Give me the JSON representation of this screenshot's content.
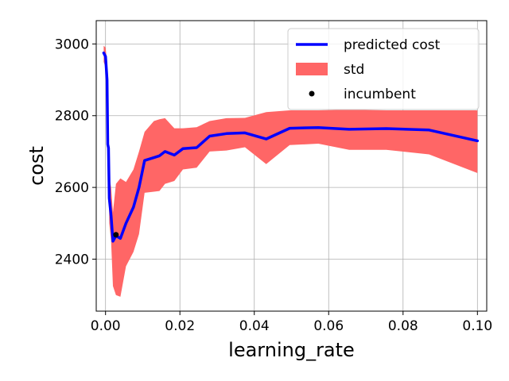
{
  "chart_data": {
    "type": "line",
    "title": "",
    "xlabel": "learning_rate",
    "ylabel": "cost",
    "xlim": [
      -0.0025,
      0.1025
    ],
    "ylim": [
      2255,
      3065
    ],
    "xticks": [
      0.0,
      0.02,
      0.04,
      0.06,
      0.08,
      0.1
    ],
    "xtick_labels": [
      "0.00",
      "0.02",
      "0.04",
      "0.06",
      "0.08",
      "0.10"
    ],
    "yticks": [
      2400,
      2600,
      2800,
      3000
    ],
    "ytick_labels": [
      "2400",
      "2600",
      "2800",
      "3000"
    ],
    "grid": true,
    "legend_position": "top-right",
    "colors": {
      "line": "#0000ff",
      "band": "#ff6666",
      "point": "#000000",
      "grid": "#b0b0b0"
    },
    "legend": [
      {
        "label": "predicted cost",
        "kind": "line"
      },
      {
        "label": "std",
        "kind": "band"
      },
      {
        "label": "incumbent",
        "kind": "point"
      }
    ],
    "series": [
      {
        "name": "predicted cost",
        "kind": "line",
        "x": [
          -0.0005,
          0.0,
          0.0004,
          0.0006,
          0.0008,
          0.001,
          0.0015,
          0.002,
          0.0028,
          0.004,
          0.0055,
          0.0075,
          0.009,
          0.0105,
          0.013,
          0.0145,
          0.016,
          0.0185,
          0.0208,
          0.0245,
          0.028,
          0.0325,
          0.0375,
          0.0432,
          0.0495,
          0.0572,
          0.0655,
          0.0755,
          0.087,
          0.1
        ],
        "y": [
          2975,
          2965,
          2900,
          2720,
          2710,
          2570,
          2520,
          2450,
          2465,
          2458,
          2500,
          2545,
          2600,
          2675,
          2683,
          2688,
          2700,
          2690,
          2708,
          2711,
          2743,
          2750,
          2752,
          2735,
          2765,
          2767,
          2762,
          2764,
          2760,
          2730
        ]
      },
      {
        "name": "std",
        "kind": "band",
        "x": [
          -0.0005,
          0.0,
          0.0004,
          0.0006,
          0.0008,
          0.001,
          0.0015,
          0.002,
          0.0028,
          0.004,
          0.0055,
          0.0075,
          0.009,
          0.0105,
          0.013,
          0.0145,
          0.016,
          0.0185,
          0.0208,
          0.0245,
          0.028,
          0.0325,
          0.0375,
          0.0432,
          0.0495,
          0.0572,
          0.0655,
          0.0755,
          0.087,
          0.1
        ],
        "upper": [
          2995,
          2990,
          2950,
          2765,
          2720,
          2630,
          2600,
          2530,
          2610,
          2625,
          2615,
          2650,
          2700,
          2755,
          2785,
          2790,
          2793,
          2765,
          2765,
          2768,
          2785,
          2793,
          2794,
          2810,
          2815,
          2815,
          2817,
          2815,
          2815,
          2815
        ],
        "lower": [
          2950,
          2935,
          2850,
          2690,
          2680,
          2500,
          2450,
          2325,
          2300,
          2295,
          2380,
          2420,
          2470,
          2585,
          2588,
          2590,
          2610,
          2618,
          2650,
          2655,
          2700,
          2703,
          2712,
          2665,
          2718,
          2722,
          2705,
          2705,
          2692,
          2640
        ]
      },
      {
        "name": "incumbent",
        "kind": "scatter",
        "x": [
          0.0028
        ],
        "y": [
          2468
        ]
      }
    ]
  }
}
